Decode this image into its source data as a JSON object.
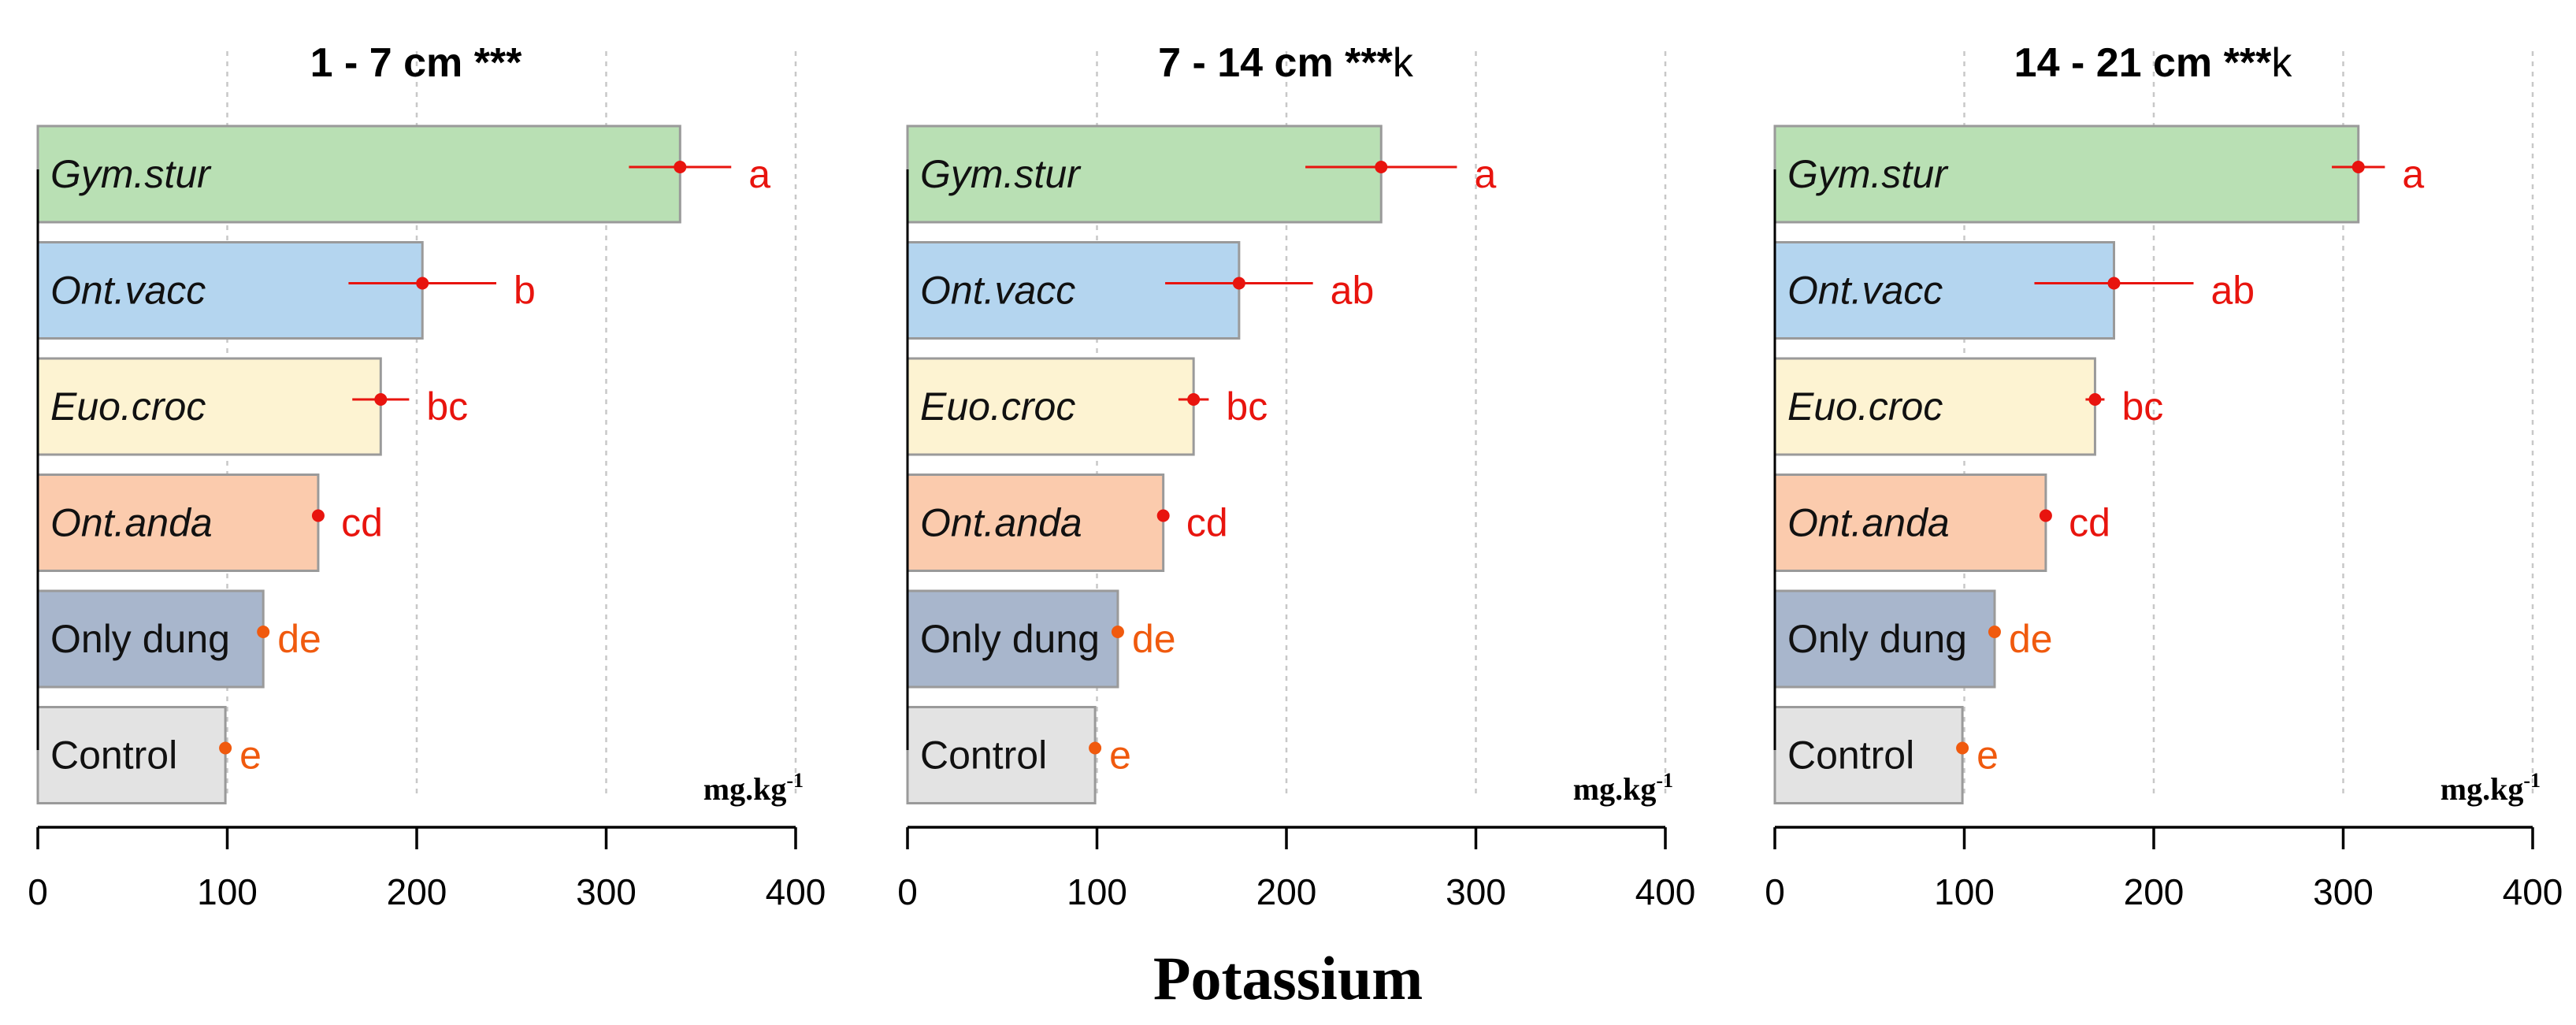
{
  "chart_data": {
    "type": "bar",
    "orientation": "horizontal",
    "xlabel": "Potassium",
    "unit_label": {
      "base": "mg.kg",
      "sup": "-1"
    },
    "xlim": [
      0,
      400
    ],
    "xticks": [
      "0",
      "100",
      "200",
      "300",
      "400"
    ],
    "grid": "vertical dotted",
    "panels": [
      {
        "title": "1 - 7 cm ***",
        "title_suffix": "",
        "bars": [
          {
            "label": "Gym.stur",
            "italic": true,
            "value": 339,
            "err": 27,
            "sig": "a",
            "color": "#b9e0b4",
            "sig_color": "#e8140e"
          },
          {
            "label": "Ont.vacc",
            "italic": true,
            "value": 203,
            "err": 39,
            "sig": "b",
            "color": "#b4d5ef",
            "sig_color": "#e8140e"
          },
          {
            "label": "Euo.croc",
            "italic": true,
            "value": 181,
            "err": 15,
            "sig": "bc",
            "color": "#fdf3d2",
            "sig_color": "#e8140e"
          },
          {
            "label": "Ont.anda",
            "italic": true,
            "value": 148,
            "err": 3,
            "sig": "cd",
            "color": "#fbcbad",
            "sig_color": "#e8140e"
          },
          {
            "label": "Only dung",
            "italic": false,
            "value": 119,
            "err": 0,
            "sig": "de",
            "color": "#a8b6cc",
            "sig_color": "#f05a0e"
          },
          {
            "label": "Control",
            "italic": false,
            "value": 99,
            "err": 0,
            "sig": "e",
            "color": "#e3e3e3",
            "sig_color": "#f05a0e"
          }
        ]
      },
      {
        "title": "7 - 14 cm ***",
        "title_suffix": "k",
        "bars": [
          {
            "label": "Gym.stur",
            "italic": true,
            "value": 250,
            "err": 40,
            "sig": "a",
            "color": "#b9e0b4",
            "sig_color": "#e8140e"
          },
          {
            "label": "Ont.vacc",
            "italic": true,
            "value": 175,
            "err": 39,
            "sig": "ab",
            "color": "#b4d5ef",
            "sig_color": "#e8140e"
          },
          {
            "label": "Euo.croc",
            "italic": true,
            "value": 151,
            "err": 8,
            "sig": "bc",
            "color": "#fdf3d2",
            "sig_color": "#e8140e"
          },
          {
            "label": "Ont.anda",
            "italic": true,
            "value": 135,
            "err": 3,
            "sig": "cd",
            "color": "#fbcbad",
            "sig_color": "#e8140e"
          },
          {
            "label": "Only dung",
            "italic": false,
            "value": 111,
            "err": 0,
            "sig": "de",
            "color": "#a8b6cc",
            "sig_color": "#f05a0e"
          },
          {
            "label": "Control",
            "italic": false,
            "value": 99,
            "err": 0,
            "sig": "e",
            "color": "#e3e3e3",
            "sig_color": "#f05a0e"
          }
        ]
      },
      {
        "title": "14 - 21 cm ***",
        "title_suffix": "k",
        "bars": [
          {
            "label": "Gym.stur",
            "italic": true,
            "value": 308,
            "err": 14,
            "sig": "a",
            "color": "#b9e0b4",
            "sig_color": "#e8140e"
          },
          {
            "label": "Ont.vacc",
            "italic": true,
            "value": 179,
            "err": 42,
            "sig": "ab",
            "color": "#b4d5ef",
            "sig_color": "#e8140e"
          },
          {
            "label": "Euo.croc",
            "italic": true,
            "value": 169,
            "err": 5,
            "sig": "bc",
            "color": "#fdf3d2",
            "sig_color": "#e8140e"
          },
          {
            "label": "Ont.anda",
            "italic": true,
            "value": 143,
            "err": 3,
            "sig": "cd",
            "color": "#fbcbad",
            "sig_color": "#e8140e"
          },
          {
            "label": "Only dung",
            "italic": false,
            "value": 116,
            "err": 0,
            "sig": "de",
            "color": "#a8b6cc",
            "sig_color": "#f05a0e"
          },
          {
            "label": "Control",
            "italic": false,
            "value": 99,
            "err": 0,
            "sig": "e",
            "color": "#e3e3e3",
            "sig_color": "#f05a0e"
          }
        ]
      }
    ]
  }
}
